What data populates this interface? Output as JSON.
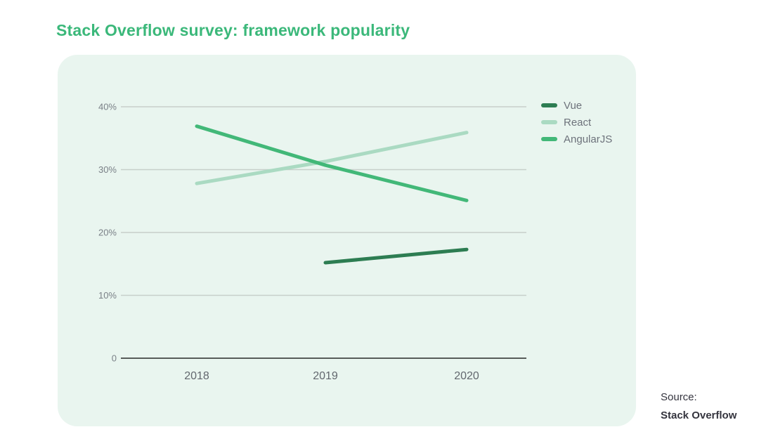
{
  "title": "Stack Overflow survey: framework popularity",
  "source": {
    "label": "Source:",
    "name": "Stack Overflow"
  },
  "colors": {
    "title": "#3bb87a",
    "panel_bg": "#e9f5ef",
    "grid": "#c7cfca",
    "axis": "#575c59",
    "tick_text": "#7a8087",
    "xtick_text": "#62676e",
    "legend_text": "#6d727b",
    "source_text": "#34343e"
  },
  "chart_data": {
    "type": "line",
    "title": "Stack Overflow survey: framework popularity",
    "categories": [
      "2018",
      "2019",
      "2020"
    ],
    "series": [
      {
        "name": "Vue",
        "color": "#2d7d52",
        "values": [
          null,
          15.2,
          17.3
        ]
      },
      {
        "name": "React",
        "color": "#aadac2",
        "values": [
          27.8,
          31.3,
          35.9
        ]
      },
      {
        "name": "AngularJS",
        "color": "#42b878",
        "values": [
          36.9,
          30.7,
          25.1
        ]
      }
    ],
    "yticks": [
      {
        "value": 0,
        "label": "0"
      },
      {
        "value": 10,
        "label": "10%"
      },
      {
        "value": 20,
        "label": "20%"
      },
      {
        "value": 30,
        "label": "30%"
      },
      {
        "value": 40,
        "label": "40%"
      }
    ],
    "ylim": [
      0,
      44
    ],
    "xlabel": "",
    "ylabel": "",
    "grid": true,
    "legend_position": "right",
    "source": "Stack Overflow"
  }
}
